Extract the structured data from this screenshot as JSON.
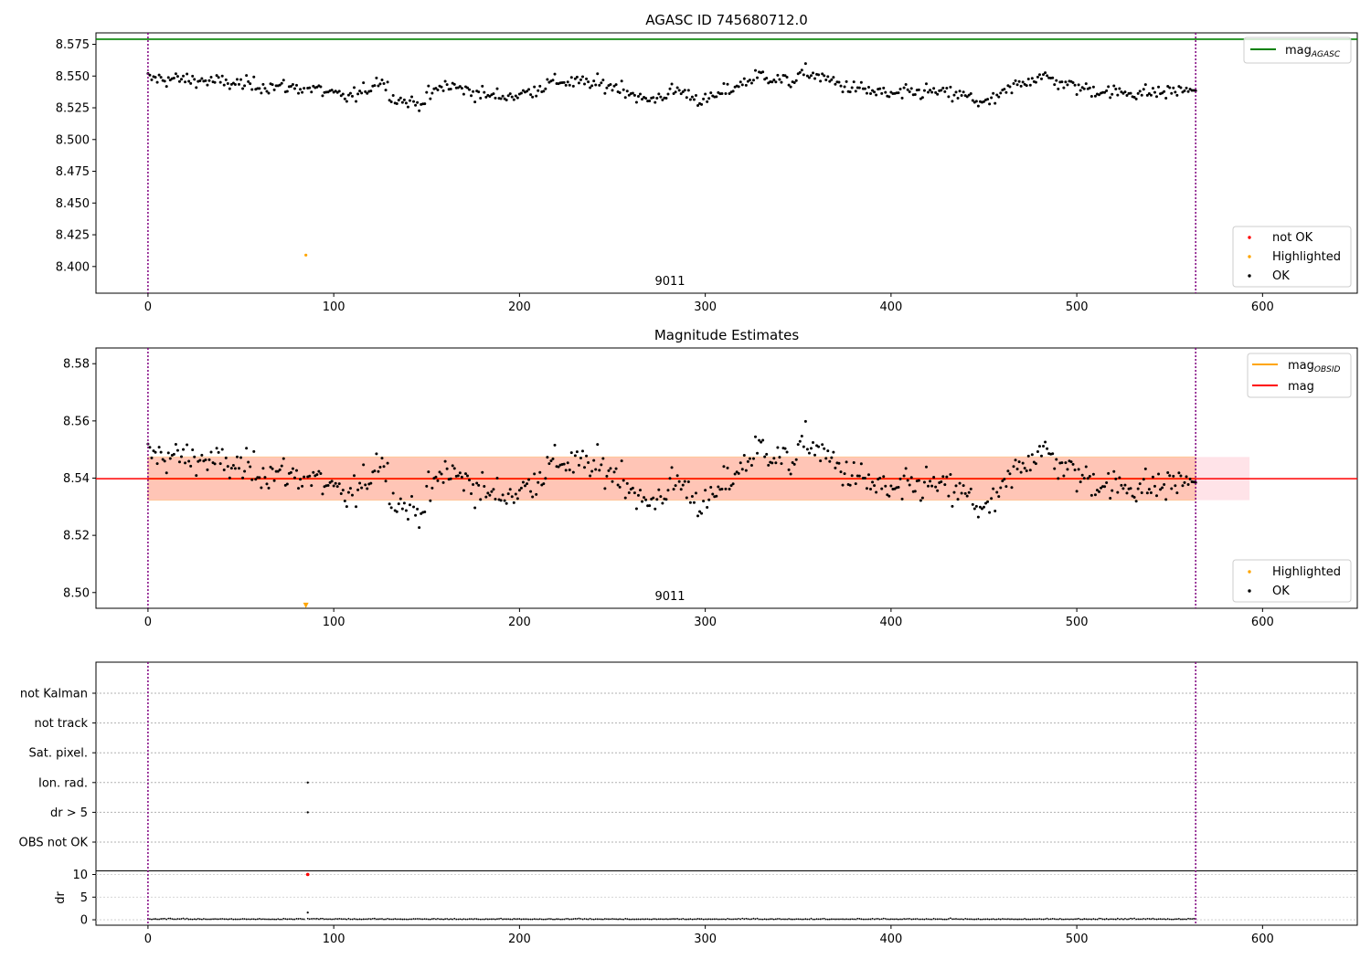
{
  "chart_data": [
    {
      "type": "scatter",
      "title": "AGASC ID 745680712.0",
      "xlim": [
        -28,
        651
      ],
      "ylim": [
        8.379,
        8.584
      ],
      "x_ticks": [
        0,
        100,
        200,
        300,
        400,
        500,
        600
      ],
      "y_ticks": [
        8.4,
        8.425,
        8.45,
        8.475,
        8.5,
        8.525,
        8.55,
        8.575
      ],
      "y_tick_decimals": 3,
      "grid": false,
      "obsid_bounds": [
        0,
        564
      ],
      "obsid_label": "9011",
      "mag_agasc": 8.579,
      "highlighted_point": {
        "x": 85,
        "y": 8.409
      },
      "line_legend": [
        {
          "label": "mag",
          "sub": "AGASC",
          "color": "#008000"
        }
      ],
      "point_legend": [
        {
          "label": "not OK",
          "color": "#ff0000"
        },
        {
          "label": "Highlighted",
          "color": "#ffa500"
        },
        {
          "label": "OK",
          "color": "#000000"
        }
      ],
      "legend_position": [
        "upper right",
        "lower right"
      ]
    },
    {
      "type": "scatter",
      "title": "Magnitude Estimates",
      "xlim": [
        -28,
        651
      ],
      "ylim": [
        8.4945,
        8.5855
      ],
      "x_ticks": [
        0,
        100,
        200,
        300,
        400,
        500,
        600
      ],
      "y_ticks": [
        8.5,
        8.52,
        8.54,
        8.56,
        8.58
      ],
      "y_tick_decimals": 2,
      "grid": false,
      "obsid_bounds": [
        0,
        564
      ],
      "obsid_label": "9011",
      "mag": 8.5398,
      "mag_band": [
        8.5323,
        8.5474
      ],
      "obsid_band": {
        "x": [
          0,
          564
        ],
        "y": [
          8.5323,
          8.5474
        ]
      },
      "band_extent": [
        0,
        593
      ],
      "mag_obsid": 8.5398,
      "highlighted_marker": {
        "x": 85,
        "y": 8.4955
      },
      "line_legend": [
        {
          "label": "mag",
          "sub": "OBSID",
          "color": "#ffa500"
        },
        {
          "label": "mag",
          "sub": "",
          "color": "#ff0000"
        }
      ],
      "point_legend": [
        {
          "label": "Highlighted",
          "color": "#ffa500"
        },
        {
          "label": "OK",
          "color": "#000000"
        }
      ],
      "legend_position": [
        "upper right",
        "lower right"
      ]
    },
    {
      "type": "scatter",
      "title": "",
      "xlim": [
        -28,
        651
      ],
      "x_ticks": [
        0,
        100,
        200,
        300,
        400,
        500,
        600
      ],
      "flag_categories": [
        "OBS not OK",
        "dr > 5",
        "Ion. rad.",
        "Sat. pixel.",
        "not track",
        "not Kalman"
      ],
      "flag_points": [
        {
          "x": 86,
          "category": "Ion. rad."
        },
        {
          "x": 86,
          "category": "dr > 5"
        }
      ],
      "dr_ylabel": "dr",
      "dr_ylim": [
        -1,
        10.3
      ],
      "dr_ticks": [
        0,
        5,
        10
      ],
      "dr_spike": {
        "x": 86,
        "y": 1.6
      },
      "dr_red_point": {
        "x": 86,
        "y": 10
      },
      "obsid_bounds": [
        0,
        564
      ]
    }
  ]
}
